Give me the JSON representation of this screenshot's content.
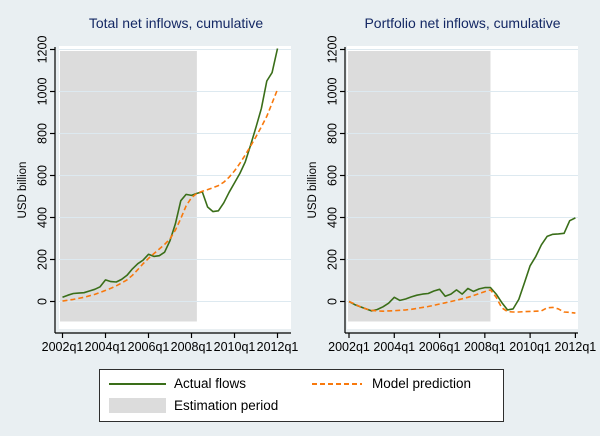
{
  "figure": {
    "background": "#e9eff2"
  },
  "colors": {
    "background": "#e9eff2",
    "plot_background": "#ffffff",
    "gridline": "#dde9f0",
    "estimation_shade": "#dcdcdc",
    "axis": "#000000",
    "title": "#142864",
    "actual_flows": "#3a6e19",
    "model_prediction": "#f8790d"
  },
  "legend": {
    "actual_label": "Actual flows",
    "model_label": "Model prediction",
    "estimation_label": "Estimation period"
  },
  "chart_data": [
    {
      "type": "line",
      "title": "Total net inflows, cumulative",
      "ylabel": "USD billion",
      "x_start": "2002q1",
      "x_tick_labels": [
        "2002q1",
        "2004q1",
        "2006q1",
        "2008q1",
        "2010q1",
        "2012q1"
      ],
      "y_ticks": [
        0,
        200,
        400,
        600,
        800,
        1000,
        1200
      ],
      "ylim": [
        -130,
        1215
      ],
      "grid": true,
      "estimation_period": {
        "start": "2002q1",
        "end": "2008q2"
      },
      "series": [
        {
          "name": "Actual flows",
          "color": "#3a6e19",
          "style": "solid",
          "values": [
            20,
            30,
            38,
            40,
            42,
            50,
            58,
            70,
            103,
            95,
            93,
            105,
            125,
            155,
            180,
            197,
            225,
            215,
            218,
            235,
            290,
            370,
            480,
            510,
            505,
            515,
            522,
            450,
            428,
            432,
            470,
            520,
            565,
            610,
            665,
            745,
            830,
            920,
            1050,
            1090,
            1205
          ]
        },
        {
          "name": "Model prediction",
          "color": "#f8790d",
          "style": "dashed",
          "values": [
            2,
            6,
            10,
            15,
            20,
            27,
            34,
            43,
            53,
            63,
            75,
            88,
            103,
            125,
            152,
            180,
            205,
            228,
            250,
            272,
            298,
            340,
            395,
            455,
            495,
            515,
            525,
            533,
            542,
            552,
            568,
            592,
            622,
            658,
            698,
            740,
            785,
            832,
            882,
            945,
            1010
          ]
        }
      ]
    },
    {
      "type": "line",
      "title": "Portfolio net inflows, cumulative",
      "ylabel": "USD billion",
      "x_start": "2002q1",
      "x_tick_labels": [
        "2002q1",
        "2004q1",
        "2006q1",
        "2008q1",
        "2010q1",
        "2012q1"
      ],
      "y_ticks": [
        0,
        200,
        400,
        600,
        800,
        1000,
        1200
      ],
      "ylim": [
        -130,
        1215
      ],
      "grid": true,
      "estimation_period": {
        "start": "2002q1",
        "end": "2008q2"
      },
      "series": [
        {
          "name": "Actual flows",
          "color": "#3a6e19",
          "style": "solid",
          "values": [
            0,
            -15,
            -25,
            -35,
            -45,
            -38,
            -25,
            -8,
            20,
            5,
            12,
            22,
            30,
            35,
            38,
            50,
            58,
            25,
            35,
            55,
            35,
            62,
            48,
            60,
            66,
            66,
            35,
            -5,
            -40,
            -35,
            10,
            90,
            170,
            215,
            270,
            310,
            320,
            322,
            325,
            385,
            398
          ]
        },
        {
          "name": "Model prediction",
          "color": "#f8790d",
          "style": "dashed",
          "values": [
            0,
            -12,
            -25,
            -35,
            -42,
            -45,
            -46,
            -45,
            -44,
            -42,
            -40,
            -37,
            -33,
            -28,
            -24,
            -18,
            -12,
            -6,
            0,
            6,
            13,
            20,
            28,
            38,
            47,
            55,
            20,
            -30,
            -48,
            -50,
            -50,
            -48,
            -47,
            -46,
            -45,
            -30,
            -28,
            -35,
            -50,
            -52,
            -55
          ]
        }
      ]
    }
  ]
}
